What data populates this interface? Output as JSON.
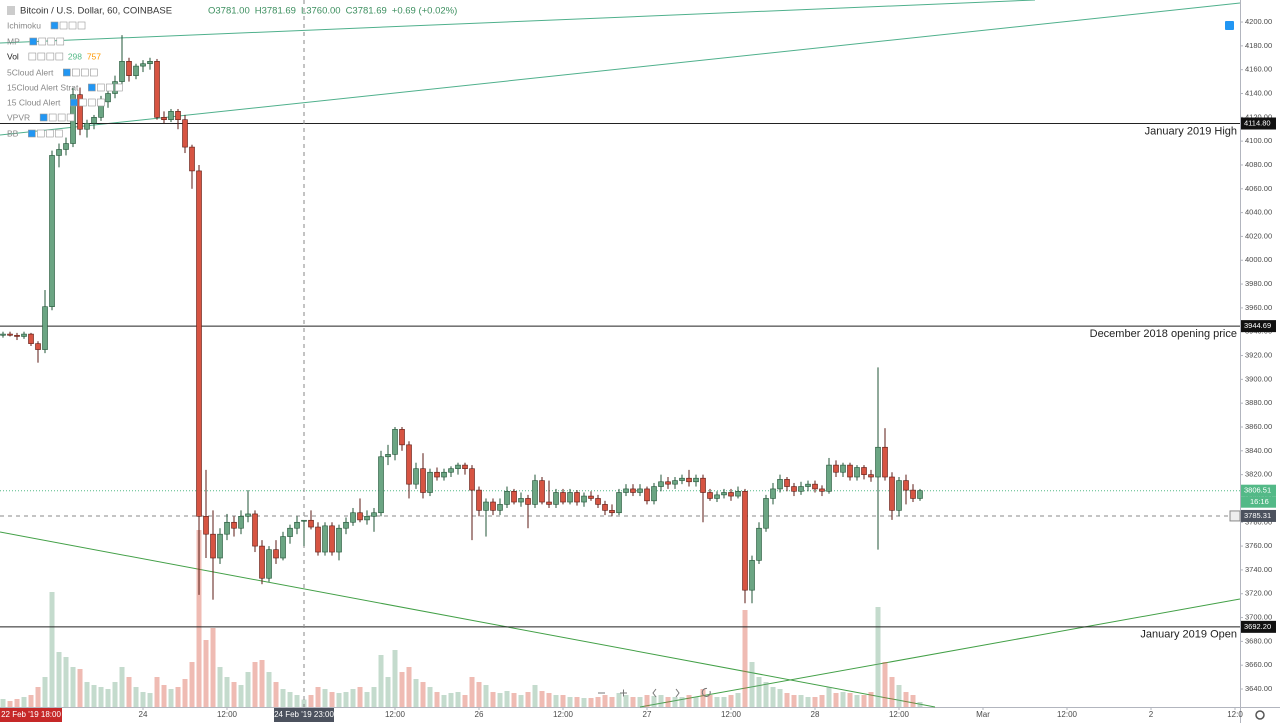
{
  "chart_data": {
    "type": "candlestick",
    "title": "Bitcoin / U.S. Dollar, 60, COINBASE",
    "readout": [
      "O3781.00",
      "H3781.69",
      "L3760.00",
      "C3781.69",
      "+0.69 (+0.02%)"
    ],
    "indicators": [
      "Ichimoku",
      "MP",
      "Vol",
      "5Cloud Alert",
      "15Cloud Alert Strat",
      "15 Cloud Alert",
      "VPVR",
      "BB"
    ],
    "vol_readout": [
      298,
      757
    ],
    "up_color": "#6ba583",
    "down_color": "#d75442",
    "x": [
      0,
      1,
      2,
      3,
      4,
      5,
      6,
      7,
      8,
      9,
      10,
      11,
      12,
      13,
      14,
      15,
      16,
      17,
      18,
      19,
      20,
      21,
      22,
      23,
      24,
      25,
      26,
      27,
      28,
      29,
      30,
      31,
      32,
      33,
      34,
      35,
      36,
      37,
      38,
      39,
      40,
      41,
      42,
      43,
      44,
      45,
      46,
      47,
      48,
      49,
      50,
      51,
      52,
      53,
      54,
      55,
      56,
      57,
      58,
      59,
      60,
      61,
      62,
      63,
      64,
      65,
      66,
      67,
      68,
      69,
      70,
      71,
      72,
      73,
      74,
      75,
      76,
      77,
      78,
      79,
      80,
      81,
      82,
      83,
      84,
      85,
      86,
      87,
      88,
      89,
      90,
      91,
      92,
      93,
      94,
      95,
      96,
      97,
      98,
      99,
      100,
      101,
      102,
      103,
      104,
      105,
      106,
      107,
      108,
      109,
      110,
      111,
      112,
      113,
      114,
      115,
      116,
      117,
      118,
      119,
      120,
      121,
      122,
      123,
      124,
      125,
      126,
      127,
      128,
      129,
      130,
      131
    ],
    "open": [
      3937,
      3938,
      3937,
      3936,
      3938,
      3930,
      3925,
      3961,
      4088,
      4093,
      4098,
      4139,
      4110,
      4115,
      4120,
      4133,
      4140,
      4150,
      4167,
      4155,
      4163,
      4165,
      4167,
      4120,
      4118,
      4125,
      4118,
      4095,
      4075,
      3785,
      3770,
      3750,
      3770,
      3780,
      3775,
      3785,
      3787,
      3760,
      3733,
      3757,
      3750,
      3768,
      3775,
      3781,
      3781.69,
      3776,
      3755,
      3777,
      3755,
      3775,
      3780,
      3788,
      3782,
      3785,
      3788,
      3835,
      3837,
      3858,
      3845,
      3812,
      3825,
      3805,
      3822,
      3818,
      3822,
      3825,
      3828,
      3825,
      3807,
      3790,
      3797,
      3790,
      3795,
      3806,
      3797,
      3800,
      3795,
      3815,
      3797,
      3795,
      3805,
      3797,
      3805,
      3797,
      3802,
      3800,
      3795,
      3790,
      3788,
      3805,
      3808,
      3805,
      3808,
      3798,
      3810,
      3814,
      3812,
      3815,
      3817,
      3814,
      3817,
      3805,
      3800,
      3803,
      3805,
      3802,
      3806,
      3723,
      3748,
      3775,
      3800,
      3808,
      3816,
      3810,
      3806,
      3810,
      3812,
      3808,
      3806,
      3828,
      3822,
      3828,
      3818,
      3826,
      3820,
      3818,
      3843,
      3818,
      3790,
      3815,
      3807,
      3800
    ],
    "high": [
      3940,
      3940,
      3939,
      3940,
      3939,
      3932,
      3975,
      4092,
      4098,
      4103,
      4145,
      4145,
      4118,
      4122,
      4138,
      4142,
      4155,
      4189,
      4170,
      4165,
      4168,
      4170,
      4169,
      4125,
      4127,
      4127,
      4122,
      4097,
      4080,
      3824,
      3790,
      3775,
      3787,
      3785,
      3790,
      3807,
      3790,
      3765,
      3760,
      3765,
      3772,
      3778,
      3785,
      3781.69,
      3790,
      3780,
      3780,
      3780,
      3778,
      3784,
      3792,
      3800,
      3790,
      3792,
      3840,
      3845,
      3860,
      3860,
      3848,
      3830,
      3838,
      3825,
      3826,
      3825,
      3827,
      3830,
      3830,
      3828,
      3810,
      3800,
      3800,
      3800,
      3810,
      3808,
      3805,
      3803,
      3820,
      3818,
      3815,
      3808,
      3808,
      3808,
      3807,
      3805,
      3806,
      3803,
      3798,
      3795,
      3808,
      3812,
      3812,
      3812,
      3810,
      3813,
      3820,
      3818,
      3818,
      3820,
      3824,
      3820,
      3820,
      3808,
      3806,
      3808,
      3808,
      3810,
      3808,
      3752,
      3780,
      3803,
      3813,
      3820,
      3818,
      3813,
      3814,
      3815,
      3815,
      3811,
      3834,
      3832,
      3830,
      3830,
      3828,
      3828,
      3824,
      3910,
      3859,
      3822,
      3818,
      3820,
      3812,
      3808
    ],
    "low": [
      3935,
      3936,
      3933,
      3934,
      3928,
      3914,
      3922,
      3958,
      4078,
      4088,
      4095,
      4105,
      4103,
      4110,
      4117,
      4128,
      4136,
      4147,
      4150,
      4152,
      4158,
      4160,
      4118,
      4115,
      4116,
      4110,
      4090,
      4060,
      3719,
      3750,
      3715,
      3745,
      3765,
      3768,
      3770,
      3780,
      3755,
      3728,
      3730,
      3745,
      3748,
      3762,
      3770,
      3760,
      3774,
      3752,
      3752,
      3752,
      3748,
      3770,
      3777,
      3780,
      3778,
      3772,
      3785,
      3828,
      3832,
      3840,
      3800,
      3808,
      3800,
      3802,
      3815,
      3815,
      3818,
      3820,
      3820,
      3765,
      3785,
      3768,
      3786,
      3786,
      3792,
      3795,
      3793,
      3775,
      3792,
      3795,
      3792,
      3792,
      3795,
      3795,
      3794,
      3793,
      3798,
      3792,
      3786,
      3785,
      3786,
      3802,
      3802,
      3802,
      3795,
      3795,
      3806,
      3808,
      3808,
      3812,
      3810,
      3810,
      3780,
      3798,
      3797,
      3800,
      3798,
      3800,
      3712,
      3712,
      3745,
      3772,
      3795,
      3805,
      3806,
      3802,
      3803,
      3806,
      3805,
      3802,
      3804,
      3818,
      3818,
      3815,
      3815,
      3816,
      3814,
      3757,
      3815,
      3782,
      3785,
      3795,
      3797,
      3798
    ],
    "close": [
      3938,
      3937,
      3936,
      3938,
      3930,
      3925,
      3961,
      4088,
      4093,
      4098,
      4139,
      4110,
      4115,
      4120,
      4133,
      4140,
      4150,
      4167,
      4155,
      4163,
      4165,
      4167,
      4120,
      4118,
      4125,
      4118,
      4095,
      4075,
      3785,
      3770,
      3750,
      3770,
      3780,
      3775,
      3785,
      3787,
      3760,
      3733,
      3757,
      3750,
      3768,
      3775,
      3780,
      3781.69,
      3776,
      3755,
      3777,
      3755,
      3775,
      3780,
      3788,
      3782,
      3785,
      3788,
      3835,
      3837,
      3858,
      3845,
      3812,
      3825,
      3805,
      3822,
      3818,
      3822,
      3825,
      3828,
      3825,
      3807,
      3790,
      3797,
      3790,
      3795,
      3806,
      3797,
      3800,
      3795,
      3815,
      3797,
      3795,
      3805,
      3797,
      3805,
      3797,
      3802,
      3800,
      3795,
      3790,
      3788,
      3805,
      3808,
      3805,
      3808,
      3798,
      3810,
      3814,
      3812,
      3815,
      3817,
      3814,
      3817,
      3805,
      3800,
      3803,
      3805,
      3802,
      3806,
      3723,
      3748,
      3775,
      3800,
      3808,
      3816,
      3810,
      3806,
      3810,
      3812,
      3808,
      3806,
      3828,
      3822,
      3828,
      3818,
      3826,
      3820,
      3818,
      3843,
      3818,
      3790,
      3815,
      3807,
      3800,
      3806.51
    ],
    "volume": [
      320,
      240,
      320,
      400,
      480,
      800,
      1200,
      4600,
      2200,
      2000,
      1600,
      1520,
      1000,
      880,
      800,
      720,
      1000,
      1600,
      1200,
      800,
      600,
      560,
      1200,
      880,
      720,
      800,
      1120,
      1800,
      7080,
      2680,
      3160,
      1600,
      1200,
      1000,
      880,
      1400,
      1800,
      1880,
      1400,
      1000,
      720,
      600,
      480,
      298,
      480,
      800,
      720,
      600,
      560,
      600,
      720,
      800,
      600,
      800,
      2080,
      1200,
      2280,
      1400,
      1600,
      1120,
      1000,
      800,
      600,
      480,
      560,
      600,
      480,
      1200,
      1000,
      880,
      600,
      560,
      640,
      560,
      480,
      600,
      880,
      640,
      560,
      480,
      480,
      400,
      400,
      360,
      360,
      400,
      480,
      400,
      560,
      480,
      400,
      400,
      480,
      440,
      480,
      400,
      400,
      400,
      480,
      400,
      720,
      480,
      400,
      400,
      480,
      560,
      3880,
      1800,
      1200,
      1000,
      800,
      720,
      560,
      480,
      480,
      400,
      400,
      480,
      800,
      560,
      600,
      560,
      480,
      480,
      600,
      4000,
      1800,
      1200,
      880,
      600,
      480,
      200
    ],
    "xlim": [
      -0.43,
      177
    ],
    "ylim": [
      3624.9,
      4218.5
    ],
    "xticks": [
      {
        "value": 20,
        "label": "24"
      },
      {
        "value": 32,
        "label": "12:00"
      },
      {
        "value": 56,
        "label": "12:00"
      },
      {
        "value": 68,
        "label": "26"
      },
      {
        "value": 80,
        "label": "12:00"
      },
      {
        "value": 92,
        "label": "27"
      },
      {
        "value": 104,
        "label": "12:00"
      },
      {
        "value": 116,
        "label": "28"
      },
      {
        "value": 128,
        "label": "12:00"
      },
      {
        "value": 140,
        "label": "Mar"
      },
      {
        "value": 152,
        "label": "12:00"
      },
      {
        "value": 164,
        "label": "2"
      },
      {
        "value": 176,
        "label": "12:0"
      }
    ],
    "yticks": [
      {
        "value": 3640,
        "label": "3640.00"
      },
      {
        "value": 3660,
        "label": "3660.00"
      },
      {
        "value": 3680,
        "label": "3680.00"
      },
      {
        "value": 3700,
        "label": "3700.00"
      },
      {
        "value": 3720,
        "label": "3720.00"
      },
      {
        "value": 3740,
        "label": "3740.00"
      },
      {
        "value": 3760,
        "label": "3760.00"
      },
      {
        "value": 3780,
        "label": "3780.00"
      },
      {
        "value": 3800,
        "label": "3800.00"
      },
      {
        "value": 3820,
        "label": "3820.00"
      },
      {
        "value": 3840,
        "label": "3840.00"
      },
      {
        "value": 3860,
        "label": "3860.00"
      },
      {
        "value": 3880,
        "label": "3880.00"
      },
      {
        "value": 3900,
        "label": "3900.00"
      },
      {
        "value": 3920,
        "label": "3920.00"
      },
      {
        "value": 3940,
        "label": "3940.00"
      },
      {
        "value": 3960,
        "label": "3960.00"
      },
      {
        "value": 3980,
        "label": "3980.00"
      },
      {
        "value": 4000,
        "label": "4000.00"
      },
      {
        "value": 4020,
        "label": "4020.00"
      },
      {
        "value": 4040,
        "label": "4040.00"
      },
      {
        "value": 4060,
        "label": "4060.00"
      },
      {
        "value": 4080,
        "label": "4080.00"
      },
      {
        "value": 4100,
        "label": "4100.00"
      },
      {
        "value": 4120,
        "label": "4120.00"
      },
      {
        "value": 4140,
        "label": "4140.00"
      },
      {
        "value": 4160,
        "label": "4160.00"
      },
      {
        "value": 4180,
        "label": "4180.00"
      },
      {
        "value": 4200,
        "label": "4200.00"
      }
    ],
    "levels": [
      {
        "label": "January 2019 High",
        "value": 4114.8,
        "value_label": "4114.80"
      },
      {
        "label": "December 2018 opening price",
        "value": 3944.69,
        "value_label": "3944.69"
      },
      {
        "label": "January 2019 Open",
        "value": 3692.2,
        "value_label": "3692.20"
      }
    ],
    "last_price": 3806.51,
    "countdown": "16:16",
    "crosshair": {
      "x": 43,
      "x_label": "24 Feb '19 23:00",
      "price": 3785.31
    },
    "start_label": "22 Feb '19 18:00"
  }
}
